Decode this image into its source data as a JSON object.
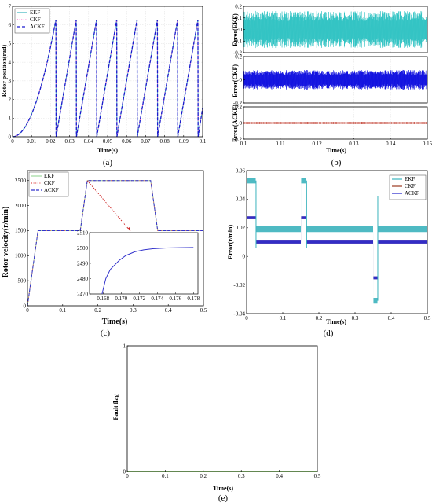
{
  "chart_data": [
    {
      "id": "a",
      "type": "line",
      "caption": "(a)",
      "xlabel": "Time(s)",
      "ylabel": "Rotor position(rad)",
      "xlim": [
        0,
        0.1
      ],
      "ylim": [
        0,
        7
      ],
      "xticks": [
        0,
        0.01,
        0.02,
        0.03,
        0.04,
        0.05,
        0.06,
        0.07,
        0.08,
        0.09,
        0.1
      ],
      "xticklabels": [
        "0",
        "0.01",
        "0.02",
        "0.03",
        "0.04",
        "0.05",
        "0.06",
        "0.07",
        "0.08",
        "0.09",
        "0.1"
      ],
      "yticks": [
        0,
        1,
        2,
        3,
        4,
        5,
        6,
        7
      ],
      "yticklabels": [
        "0",
        "1",
        "2",
        "3",
        "4",
        "5",
        "6",
        "7"
      ],
      "grid": true,
      "legend_position": "top-left",
      "series": [
        {
          "name": "EKF",
          "color": "#3bb3bd",
          "style": "solid"
        },
        {
          "name": "CKF",
          "color": "#ff66cc",
          "style": "dotted"
        },
        {
          "name": "ACKF",
          "color": "#1c1ccf",
          "style": "dashed"
        }
      ],
      "x": [
        0,
        0.005,
        0.01,
        0.015,
        0.02,
        0.0228,
        0.0229,
        0.0335,
        0.0336,
        0.0442,
        0.0443,
        0.0548,
        0.0549,
        0.0655,
        0.0656,
        0.0762,
        0.0763,
        0.0868,
        0.0869,
        0.0975,
        0.0976,
        0.1
      ],
      "y": [
        0,
        0.4,
        1.6,
        3.3,
        5.2,
        6.28,
        0,
        6.28,
        0,
        6.28,
        0,
        6.28,
        0,
        6.28,
        0,
        6.28,
        0,
        6.28,
        0,
        6.28,
        0,
        1.55
      ]
    },
    {
      "id": "b",
      "type": "line",
      "caption": "(b)",
      "xlabel": "Time(s)",
      "xlim": [
        0.1,
        0.15
      ],
      "xticks": [
        0.1,
        0.11,
        0.12,
        0.13,
        0.14,
        0.15
      ],
      "xticklabels": [
        "0.1",
        "0.11",
        "0.12",
        "0.13",
        "0.14",
        "0.15"
      ],
      "grid": true,
      "panels": [
        {
          "ylabel": "Error(EKF)",
          "ylim": [
            -0.2,
            0.2
          ],
          "yticks": [
            -0.2,
            -0.1,
            0,
            0.1,
            0.2
          ],
          "yticklabels": [
            "-0.2",
            "-0.1",
            "0",
            "0.1",
            "0.2"
          ],
          "noise_amplitude": 0.16,
          "color": "#33c4c4"
        },
        {
          "ylabel": "Error(CKF)",
          "ylim": [
            -0.2,
            0.2
          ],
          "yticks": [
            -0.2,
            0,
            0.2
          ],
          "yticklabels": [
            "-0.2",
            "0",
            "0.2"
          ],
          "noise_amplitude": 0.085,
          "color": "#1313e0"
        },
        {
          "ylabel": "Error(ACKF)",
          "ylim": [
            -0.2,
            0.2
          ],
          "yticks": [
            -0.2,
            0,
            0.2
          ],
          "yticklabels": [
            "-0.2",
            "0",
            "0.2"
          ],
          "noise_amplitude": 0.012,
          "color": "#c0392b"
        }
      ]
    },
    {
      "id": "c",
      "type": "line",
      "caption": "(c)",
      "xlabel": "Time(s)",
      "ylabel": "Rotor velocity(r/min)",
      "xlim": [
        0,
        0.5
      ],
      "ylim": [
        0,
        2700
      ],
      "xticks": [
        0,
        0.1,
        0.2,
        0.3,
        0.4,
        0.5
      ],
      "xticklabels": [
        "0",
        "0.1",
        "0.2",
        "0.3",
        "0.4",
        "0.5"
      ],
      "yticks": [
        0,
        500,
        1000,
        1500,
        2000,
        2500
      ],
      "yticklabels": [
        "0",
        "500",
        "1000",
        "1500",
        "2000",
        "2500"
      ],
      "grid": false,
      "legend_position": "top-left",
      "series": [
        {
          "name": "EKF",
          "color": "#9ed99e",
          "style": "solid"
        },
        {
          "name": "CKF",
          "color": "#e05555",
          "style": "dotted"
        },
        {
          "name": "ACKF",
          "color": "#3333cc",
          "style": "dashed"
        }
      ],
      "x": [
        0,
        0.03,
        0.15,
        0.17,
        0.35,
        0.37,
        0.5
      ],
      "y": [
        0,
        1500,
        1500,
        2500,
        2500,
        1500,
        1500
      ],
      "inset": {
        "xlim": [
          0.1665,
          0.1785
        ],
        "ylim": [
          2470,
          2510
        ],
        "xticks": [
          0.168,
          0.17,
          0.172,
          0.174,
          0.176,
          0.178
        ],
        "xticklabels": [
          "0.168",
          "0.170",
          "0.172",
          "0.174",
          "0.176",
          "0.178"
        ],
        "yticks": [
          2470,
          2480,
          2490,
          2500,
          2510
        ],
        "yticklabels": [
          "2470",
          "2480",
          "2490",
          "2500",
          "2510"
        ],
        "x": [
          0.1678,
          0.1683,
          0.1688,
          0.1693,
          0.1698,
          0.1705,
          0.1715,
          0.1725,
          0.1735,
          0.175,
          0.1765,
          0.178
        ],
        "y": [
          2468,
          2480,
          2486,
          2489,
          2492,
          2495,
          2497.5,
          2498.8,
          2499.5,
          2500,
          2500.2,
          2500.3
        ]
      }
    },
    {
      "id": "d",
      "type": "line",
      "caption": "(d)",
      "xlabel": "Time(s)",
      "ylabel": "Error(r/min)",
      "xlim": [
        0,
        0.5
      ],
      "ylim": [
        -0.04,
        0.06
      ],
      "xticks": [
        0,
        0.1,
        0.2,
        0.3,
        0.4,
        0.5
      ],
      "xticklabels": [
        "0",
        "0.1",
        "0.2",
        "0.3",
        "0.4",
        "0.5"
      ],
      "yticks": [
        -0.04,
        -0.02,
        0,
        0.02,
        0.04,
        0.06
      ],
      "yticklabels": [
        "-0.04",
        "-0.02",
        "0",
        "0.02",
        "0.04",
        "0.06"
      ],
      "grid": false,
      "legend_position": "top-right",
      "series": [
        {
          "name": "EKF",
          "color": "#3bb3bd",
          "x": [
            0,
            0.025,
            0.026,
            0.15,
            0.151,
            0.165,
            0.166,
            0.35,
            0.351,
            0.362,
            0.363,
            0.5
          ],
          "y": [
            0.053,
            0.053,
            0.019,
            0.019,
            0.053,
            0.053,
            0.019,
            0.019,
            -0.031,
            -0.031,
            0.019,
            0.019
          ],
          "band": 0.002
        },
        {
          "name": "CKF",
          "color": "#9b3a20",
          "x": [
            0,
            0.025,
            0.026,
            0.15,
            0.151,
            0.165,
            0.166,
            0.35,
            0.351,
            0.362,
            0.363,
            0.5
          ],
          "y": [
            0.027,
            0.027,
            0.01,
            0.01,
            0.027,
            0.027,
            0.01,
            0.01,
            -0.015,
            -0.015,
            0.01,
            0.01
          ],
          "band": 0.001
        },
        {
          "name": "ACKF",
          "color": "#2222cc",
          "x": [
            0,
            0.025,
            0.026,
            0.15,
            0.151,
            0.165,
            0.166,
            0.35,
            0.351,
            0.362,
            0.363,
            0.5
          ],
          "y": [
            0.027,
            0.027,
            0.01,
            0.01,
            0.027,
            0.027,
            0.01,
            0.01,
            -0.015,
            -0.015,
            0.01,
            0.01
          ],
          "band": 0.001
        }
      ]
    },
    {
      "id": "e",
      "type": "line",
      "caption": "(e)",
      "xlabel": "Time(s)",
      "ylabel": "Fault flag",
      "xlim": [
        0,
        0.5
      ],
      "ylim": [
        0,
        1
      ],
      "xticks": [
        0,
        0.1,
        0.2,
        0.3,
        0.4,
        0.5
      ],
      "xticklabels": [
        "0",
        "0.1",
        "0.2",
        "0.3",
        "0.4",
        "0.5"
      ],
      "yticks": [
        0,
        1
      ],
      "yticklabels": [
        "0",
        "1"
      ],
      "grid": false,
      "series": [
        {
          "color": "#66cc33",
          "x": [
            0,
            0.5
          ],
          "y": [
            0,
            0
          ]
        }
      ]
    }
  ]
}
